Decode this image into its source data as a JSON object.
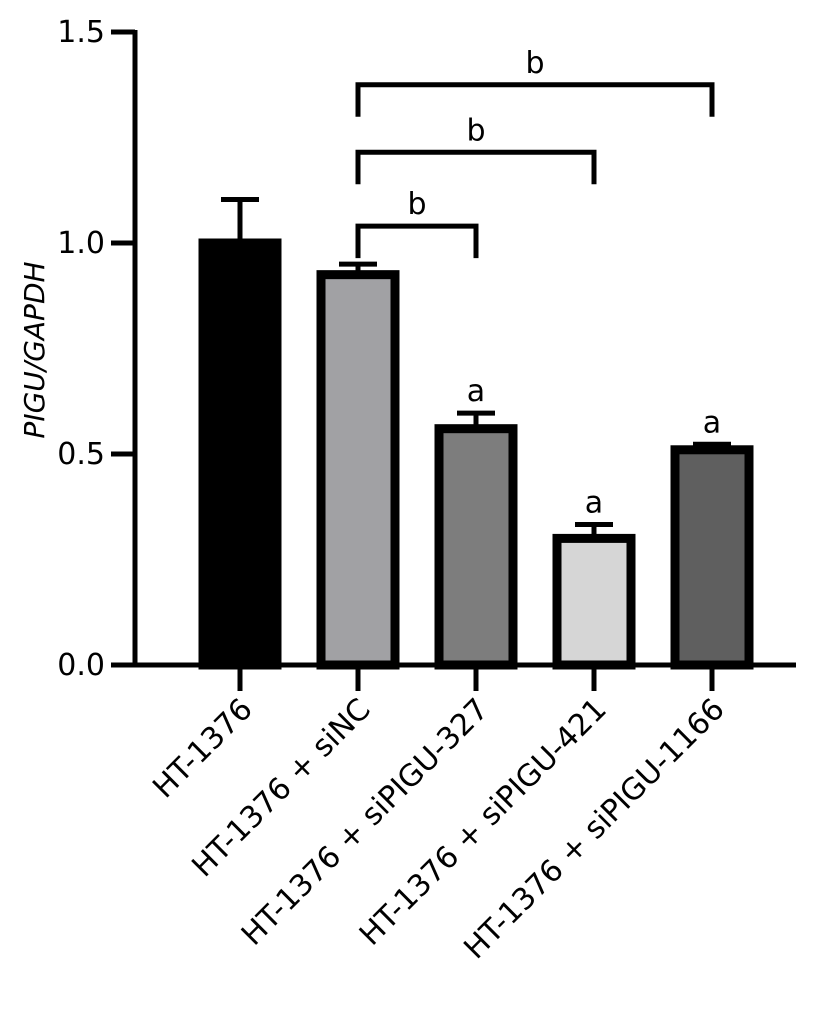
{
  "chart_data": {
    "type": "bar",
    "ylabel": "PIGU/GAPDH",
    "xlabel": "",
    "ylim": [
      0,
      1.5
    ],
    "yticks": [
      "0.0",
      "0.5",
      "1.0",
      "1.5"
    ],
    "grid": false,
    "categories": [
      "HT-1376",
      "HT-1376 + siNC",
      "HT-1376 + siPIGU-327",
      "HT-1376 + siPIGU-421",
      "HT-1376 + siPIGU-1166"
    ],
    "values": [
      1.0,
      0.925,
      0.56,
      0.3,
      0.51
    ],
    "errors": [
      0.103,
      0.025,
      0.037,
      0.033,
      0.013
    ],
    "bar_colors": [
      "#000000",
      "#a1a1a4",
      "#7d7d7d",
      "#d6d6d6",
      "#5f5f5f"
    ],
    "bar_annotations": [
      "",
      "",
      "a",
      "a",
      "a"
    ],
    "comparisons": [
      {
        "from": 1,
        "to": 2,
        "label": "b",
        "y": 1.04
      },
      {
        "from": 1,
        "to": 3,
        "label": "b",
        "y": 1.215
      },
      {
        "from": 1,
        "to": 4,
        "label": "b",
        "y": 1.375
      }
    ]
  }
}
